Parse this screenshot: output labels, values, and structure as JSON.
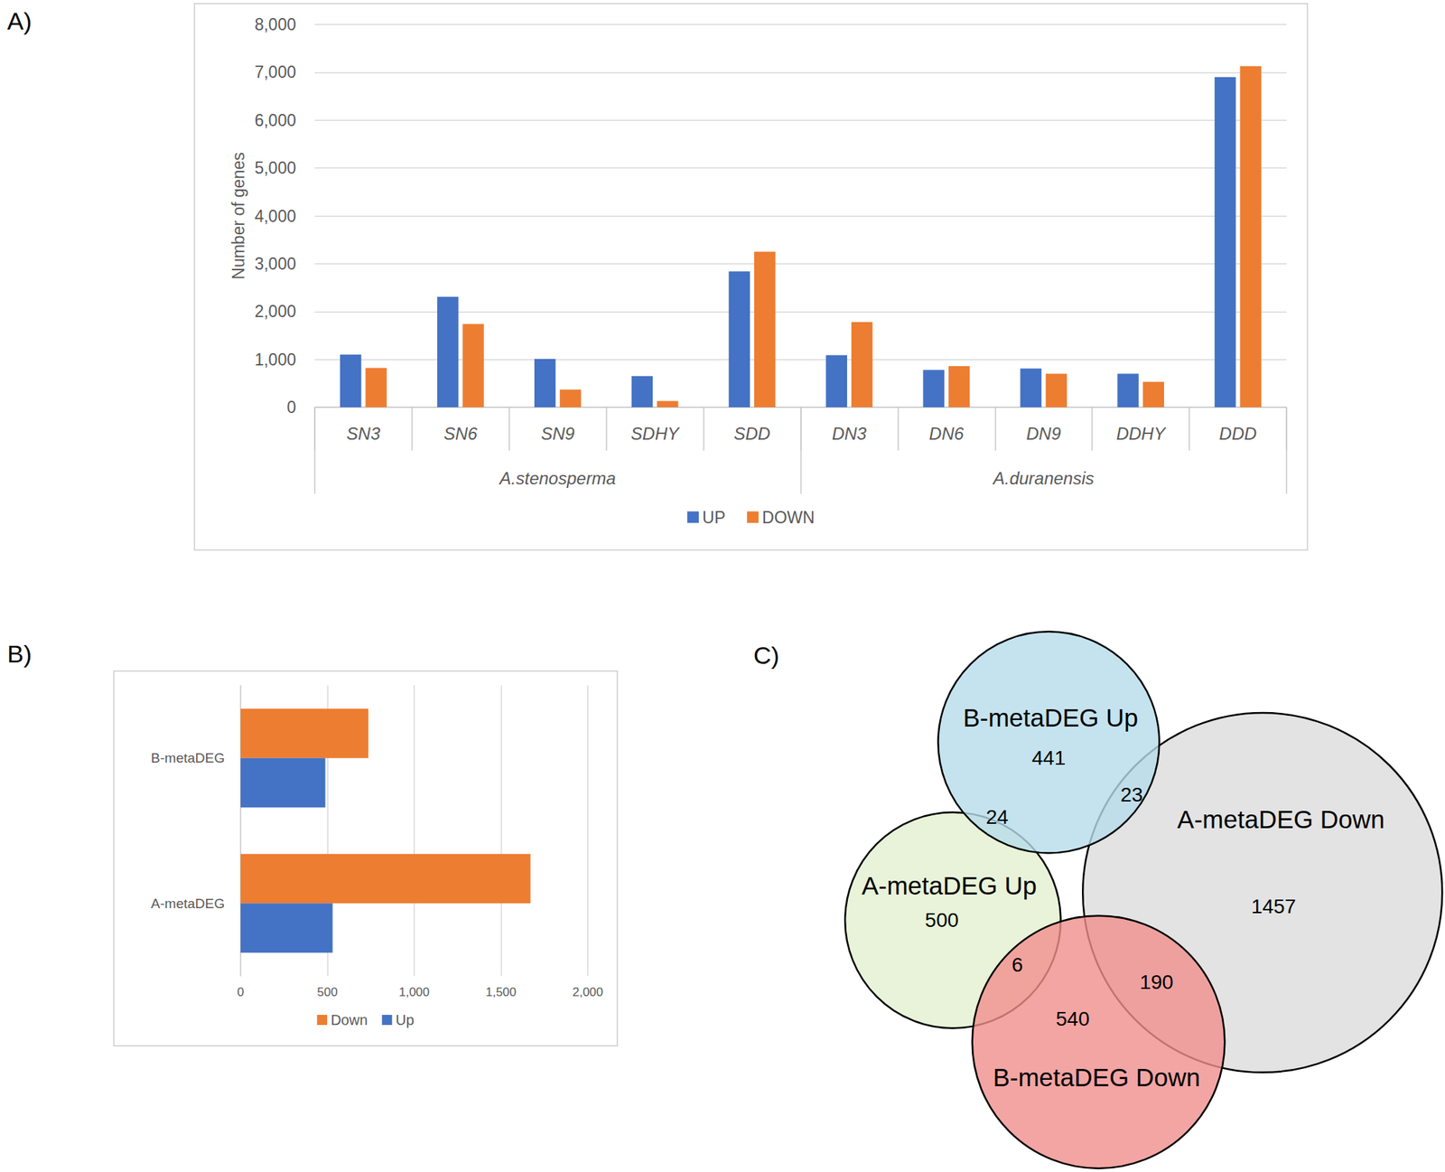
{
  "chart_data": [
    {
      "panel": "A)",
      "type": "bar",
      "categories": [
        "SN3",
        "SN6",
        "SN9",
        "SDHY",
        "SDD",
        "DN3",
        "DN6",
        "DN9",
        "DDHY",
        "DDD"
      ],
      "groups": [
        "A.stenosperma",
        "A.stenosperma",
        "A.stenosperma",
        "A.stenosperma",
        "A.stenosperma",
        "A.duranensis",
        "A.duranensis",
        "A.duranensis",
        "A.duranensis",
        "A.duranensis"
      ],
      "ylabel": "Number of genes",
      "ylim": [
        0,
        8000
      ],
      "yticks": [
        0,
        1000,
        2000,
        3000,
        4000,
        5000,
        6000,
        7000,
        8000
      ],
      "grid": true,
      "legend": "bottom",
      "series": [
        {
          "name": "UP",
          "color": "#4472c4",
          "values": [
            1100,
            2310,
            1010,
            650,
            2840,
            1090,
            780,
            810,
            700,
            6900
          ]
        },
        {
          "name": "DOWN",
          "color": "#ed7d31",
          "values": [
            820,
            1740,
            370,
            130,
            3250,
            1780,
            860,
            700,
            530,
            7130
          ]
        }
      ]
    },
    {
      "panel": "B)",
      "type": "bar",
      "orientation": "horizontal",
      "categories": [
        "B-metaDEG",
        "A-metaDEG"
      ],
      "xlim": [
        0,
        2000
      ],
      "xticks": [
        0,
        500,
        1000,
        1500,
        2000
      ],
      "grid": true,
      "legend": "bottom",
      "series": [
        {
          "name": "Down",
          "color": "#ed7d31",
          "values": [
            736,
            1670
          ]
        },
        {
          "name": "Up",
          "color": "#4472c4",
          "values": [
            488,
            530
          ]
        }
      ]
    },
    {
      "panel": "C)",
      "type": "venn",
      "sets": [
        {
          "name": "A-metaDEG Down",
          "color": "#dcdcdc"
        },
        {
          "name": "A-metaDEG Up",
          "color": "#e2f0d0"
        },
        {
          "name": "B-metaDEG Up",
          "color": "#b7dcea"
        },
        {
          "name": "B-metaDEG Down",
          "color": "#f08f8c"
        }
      ],
      "regions": [
        {
          "sets": [
            "B-metaDEG Up"
          ],
          "value": 441
        },
        {
          "sets": [
            "B-metaDEG Up",
            "A-metaDEG Up"
          ],
          "value": 24
        },
        {
          "sets": [
            "B-metaDEG Up",
            "A-metaDEG Down"
          ],
          "value": 23
        },
        {
          "sets": [
            "A-metaDEG Up"
          ],
          "value": 500
        },
        {
          "sets": [
            "A-metaDEG Down"
          ],
          "value": 1457
        },
        {
          "sets": [
            "A-metaDEG Up",
            "B-metaDEG Down"
          ],
          "value": 6
        },
        {
          "sets": [
            "B-metaDEG Down",
            "A-metaDEG Down"
          ],
          "value": 190
        },
        {
          "sets": [
            "B-metaDEG Down"
          ],
          "value": 540
        }
      ]
    }
  ]
}
